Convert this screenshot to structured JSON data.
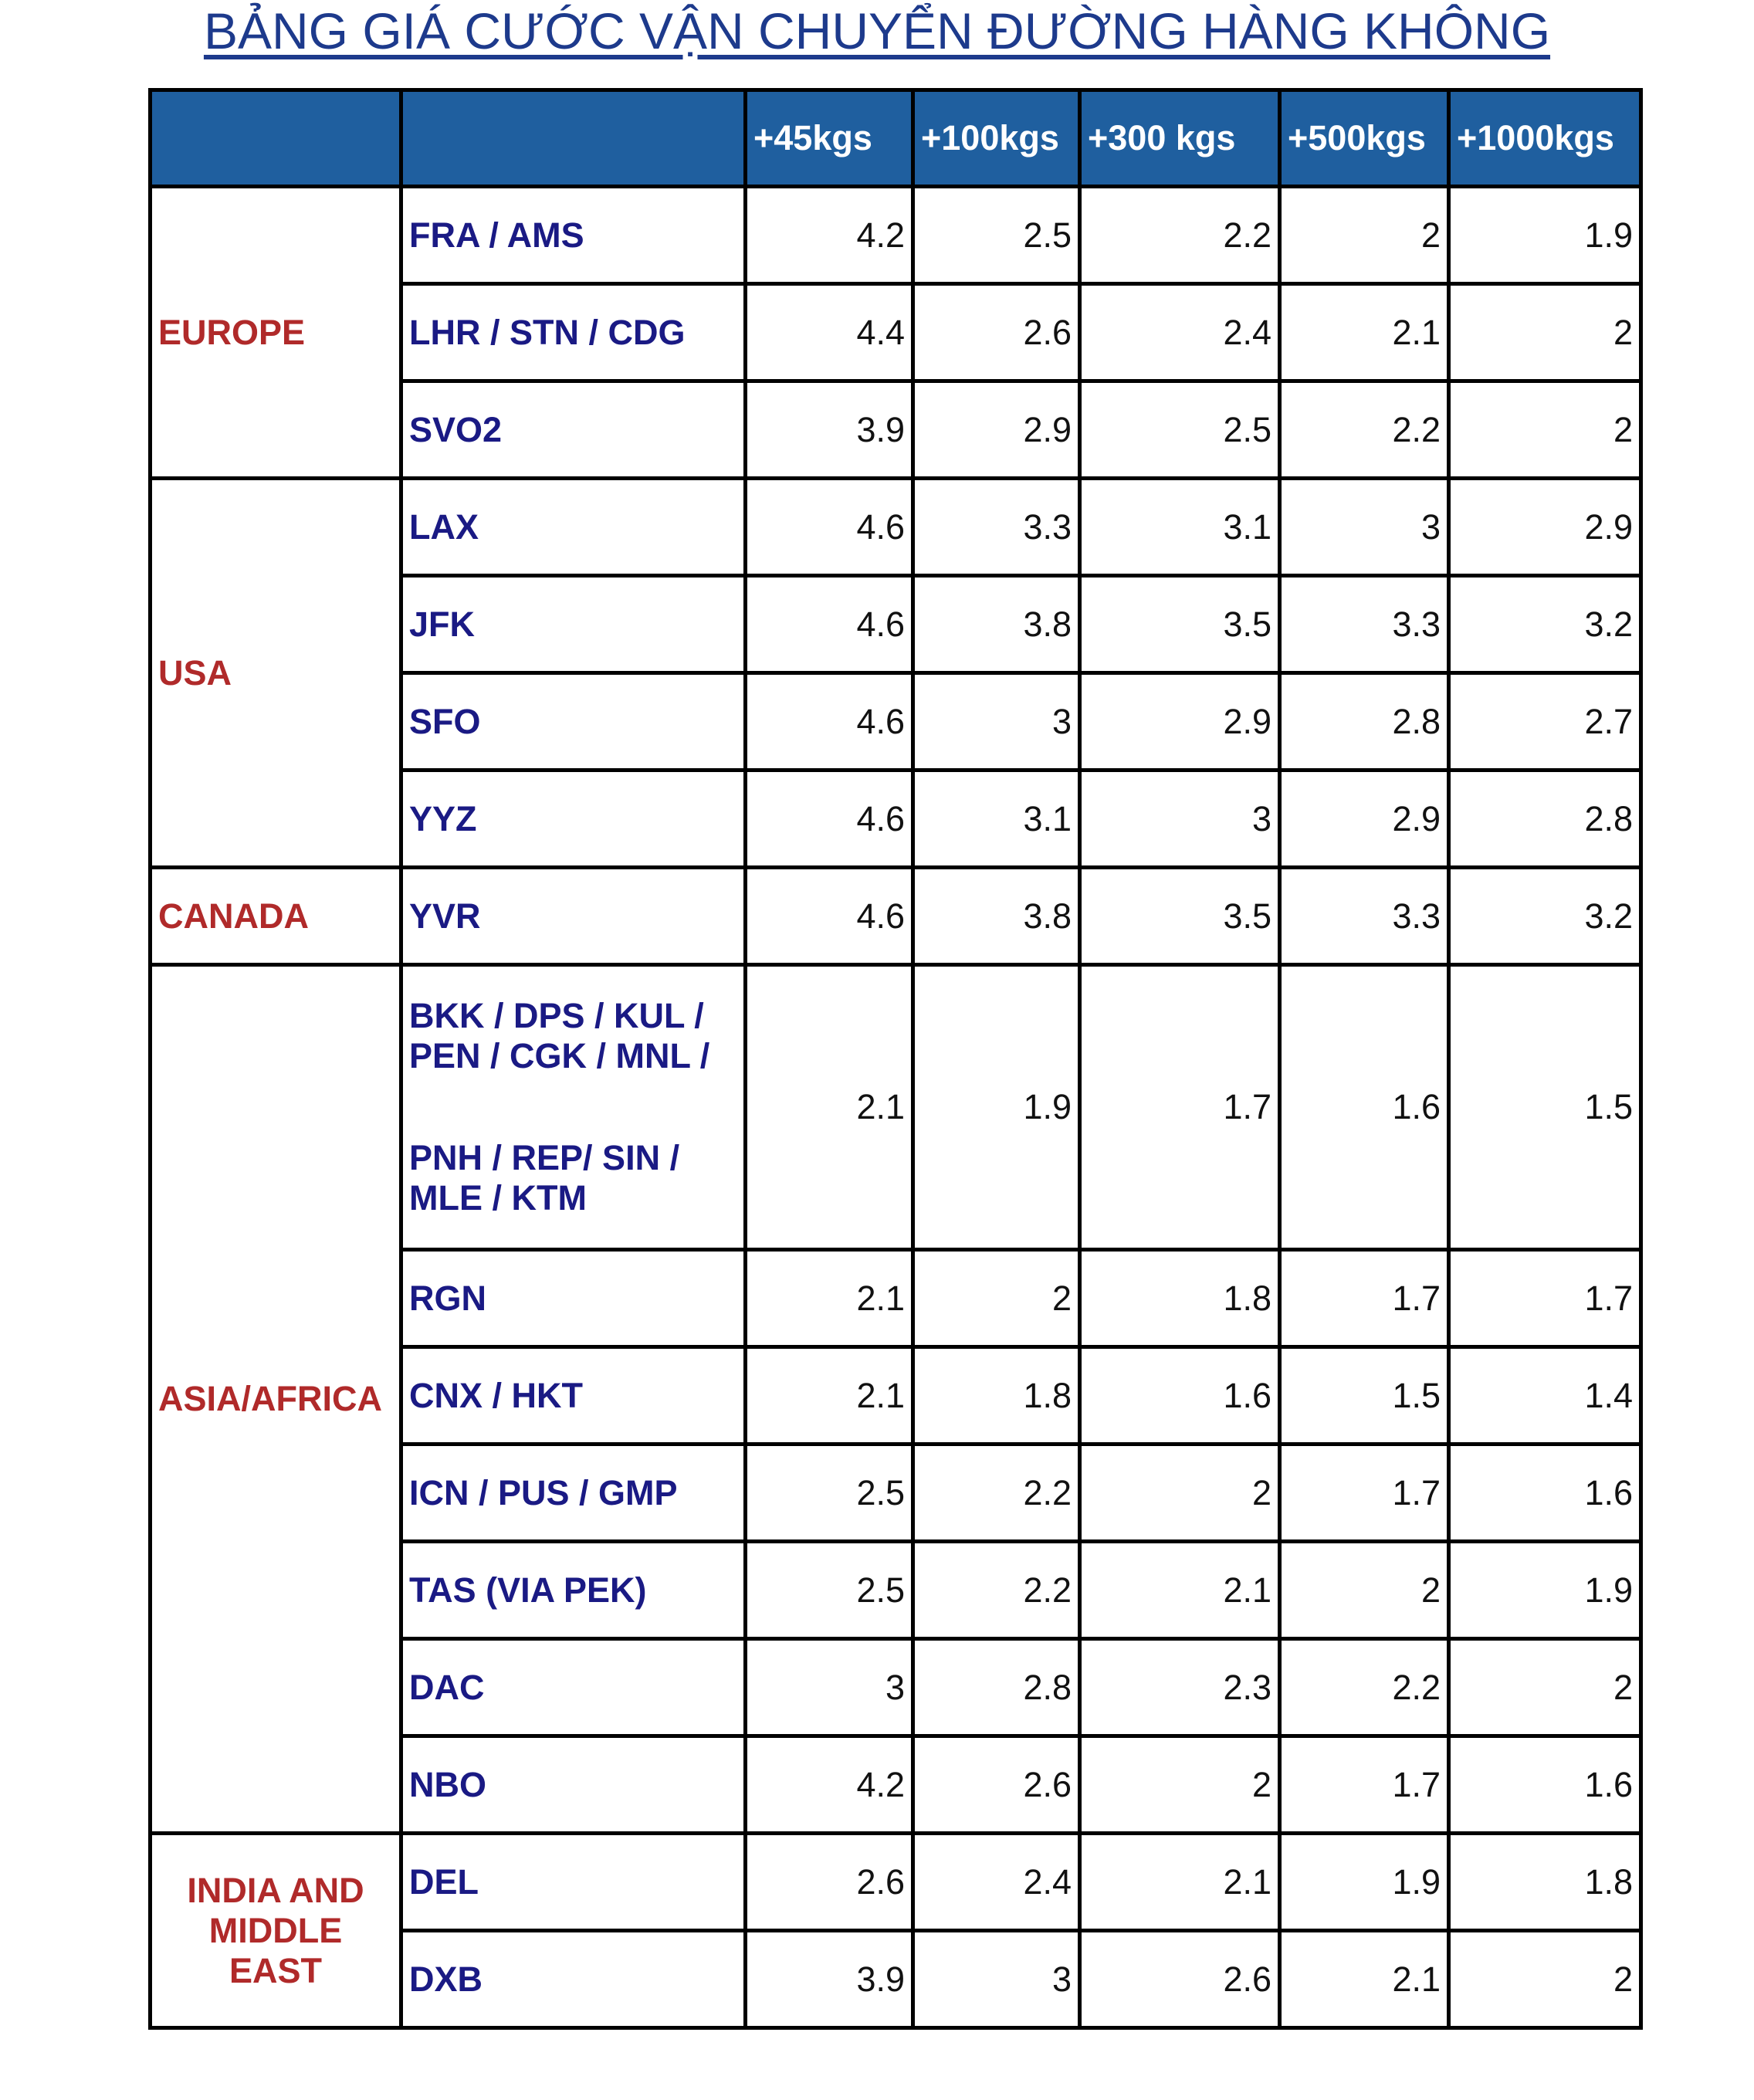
{
  "title": "BẢNG GIÁ CƯỚC VẬN CHUYỂN ĐƯỜNG HÀNG KHÔNG",
  "header": {
    "columns": [
      "+45kgs",
      "+100kgs",
      "+300 kgs",
      "+500kgs",
      "+1000kgs"
    ]
  },
  "groups": [
    {
      "region": "EUROPE",
      "rows": [
        {
          "route": "FRA / AMS",
          "values": [
            4.2,
            2.5,
            2.2,
            2,
            1.9
          ]
        },
        {
          "route": "LHR / STN / CDG",
          "values": [
            4.4,
            2.6,
            2.4,
            2.1,
            2
          ]
        },
        {
          "route": "SVO2",
          "values": [
            3.9,
            2.9,
            2.5,
            2.2,
            2
          ]
        }
      ]
    },
    {
      "region": "USA",
      "rows": [
        {
          "route": "LAX",
          "values": [
            4.6,
            3.3,
            3.1,
            3,
            2.9
          ]
        },
        {
          "route": "JFK",
          "values": [
            4.6,
            3.8,
            3.5,
            3.3,
            3.2
          ]
        },
        {
          "route": "SFO",
          "values": [
            4.6,
            3,
            2.9,
            2.8,
            2.7
          ]
        },
        {
          "route": "YYZ",
          "values": [
            4.6,
            3.1,
            3,
            2.9,
            2.8
          ]
        }
      ]
    },
    {
      "region": "CANADA",
      "rows": [
        {
          "route": "YVR",
          "values": [
            4.6,
            3.8,
            3.5,
            3.3,
            3.2
          ]
        }
      ]
    },
    {
      "region": "ASIA/AFRICA",
      "rows": [
        {
          "route": [
            "BKK / DPS / KUL / PEN / CGK / MNL /",
            "PNH / REP/ SIN / MLE / KTM"
          ],
          "values": [
            2.1,
            1.9,
            1.7,
            1.6,
            1.5
          ]
        },
        {
          "route": "RGN",
          "values": [
            2.1,
            2,
            1.8,
            1.7,
            1.7
          ]
        },
        {
          "route": "CNX / HKT",
          "values": [
            2.1,
            1.8,
            1.6,
            1.5,
            1.4
          ]
        },
        {
          "route": "ICN / PUS / GMP",
          "values": [
            2.5,
            2.2,
            2,
            1.7,
            1.6
          ]
        },
        {
          "route": "TAS (VIA PEK)",
          "values": [
            2.5,
            2.2,
            2.1,
            2,
            1.9
          ]
        },
        {
          "route": "DAC",
          "values": [
            3,
            2.8,
            2.3,
            2.2,
            2
          ]
        },
        {
          "route": "NBO",
          "values": [
            4.2,
            2.6,
            2,
            1.7,
            1.6
          ]
        }
      ]
    },
    {
      "region": "INDIA AND MIDDLE EAST",
      "rows": [
        {
          "route": "DEL",
          "values": [
            2.6,
            2.4,
            2.1,
            1.9,
            1.8
          ]
        },
        {
          "route": "DXB",
          "values": [
            3.9,
            3,
            2.6,
            2.1,
            2
          ]
        }
      ]
    }
  ]
}
